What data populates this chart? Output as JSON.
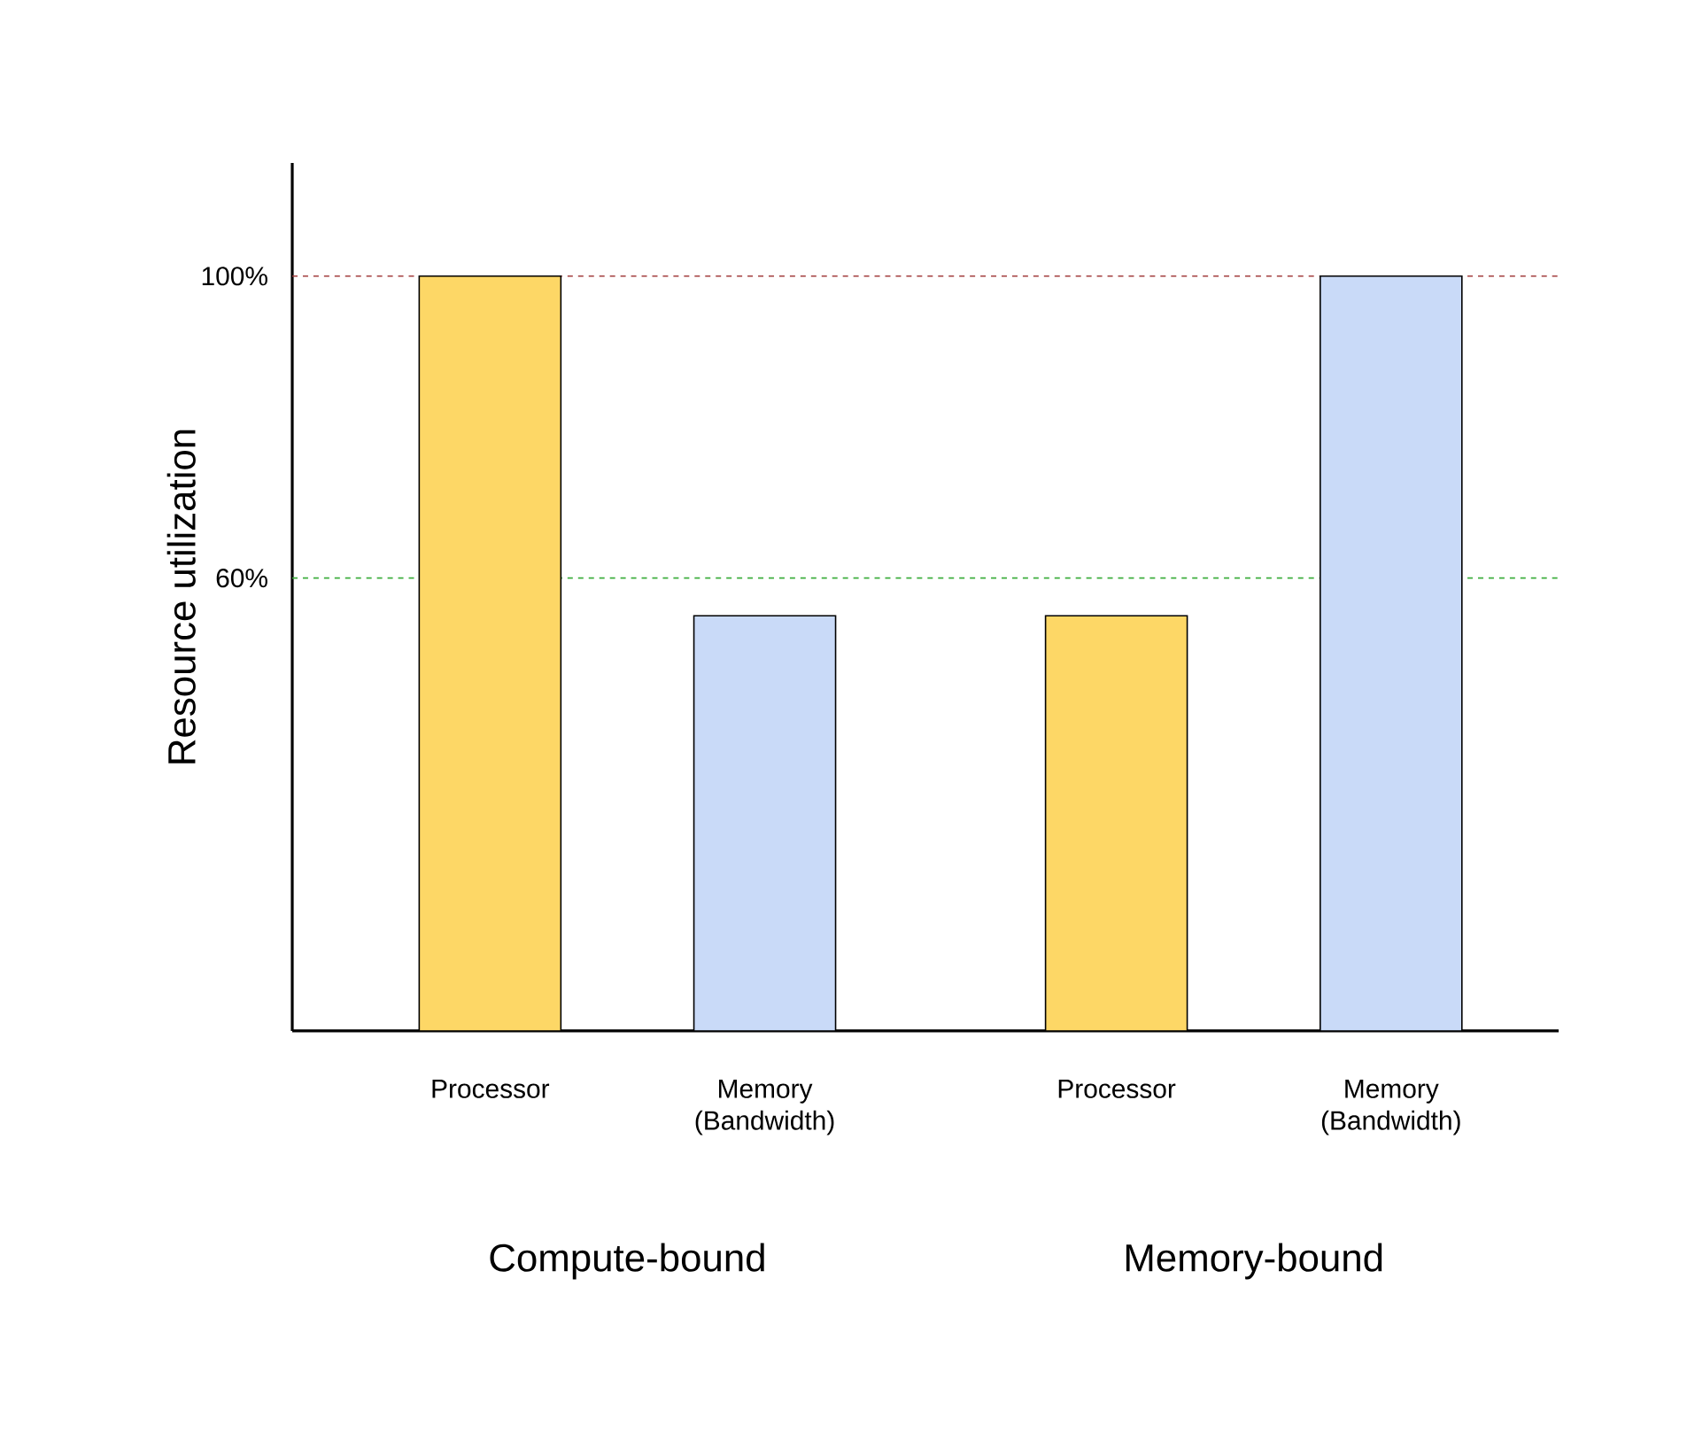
{
  "chart_data": {
    "type": "bar",
    "ylabel": "Resource utilization",
    "categories": [
      "Processor",
      "Memory (Bandwidth)",
      "Processor",
      "Memory (Bandwidth)"
    ],
    "values": [
      100,
      55,
      55,
      100
    ],
    "colors": [
      "#fdd766",
      "#c9daf8",
      "#fdd766",
      "#c9daf8"
    ],
    "ylim": [
      0,
      115
    ],
    "yticks": [
      {
        "value": 60,
        "label": "60%"
      },
      {
        "value": 100,
        "label": "100%"
      }
    ],
    "ref_lines": [
      {
        "axis": "y",
        "value": 100,
        "color": "#a33f3f",
        "line_style": "dashed"
      },
      {
        "axis": "y",
        "value": 60,
        "color": "#3fae3f",
        "line_style": "dashed"
      }
    ],
    "annotations": [
      "Compute-bound",
      "Memory-bound"
    ],
    "grid": false
  }
}
